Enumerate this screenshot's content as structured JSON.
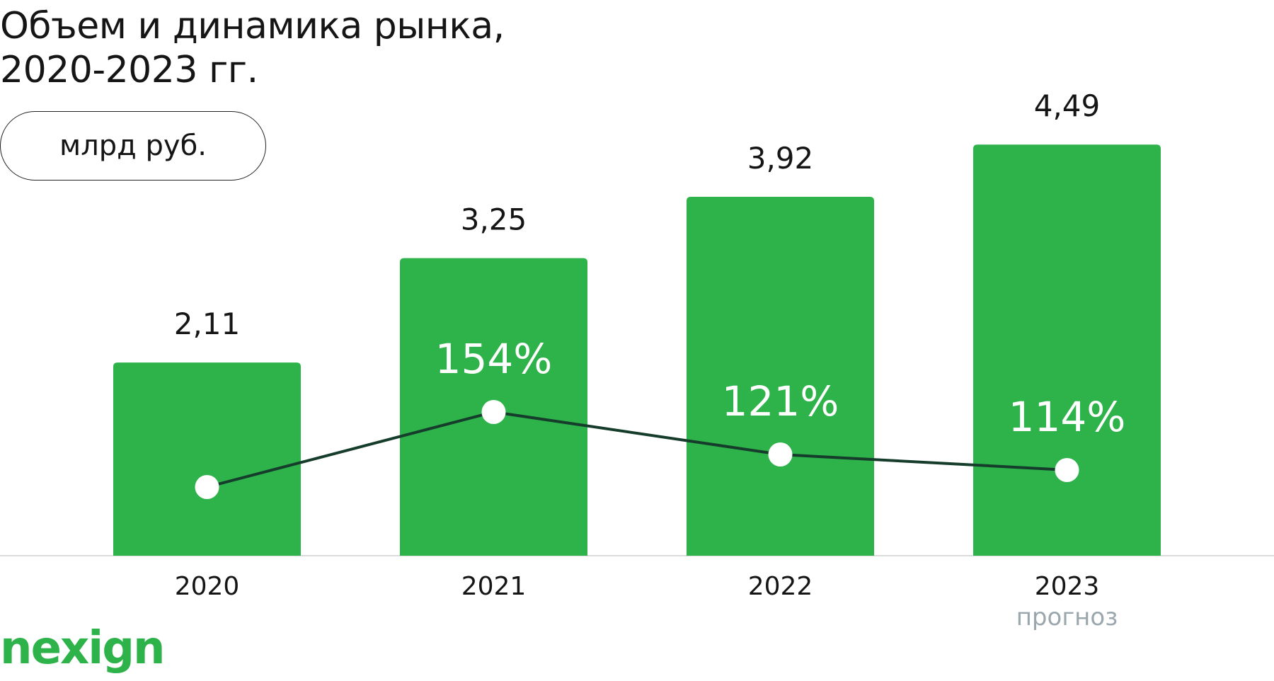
{
  "title_lines": [
    "Объем и динамика рынка,",
    "2020-2023 гг."
  ],
  "unit": "млрд руб.",
  "logo": "nexign",
  "colors": {
    "bar": "#2db34a",
    "line": "#163d2c",
    "marker": "#ffffff",
    "percent_text": "#ffffff",
    "note": "#9aa7ad",
    "baseline": "#cfcfcf"
  },
  "chart_data": {
    "type": "bar",
    "title": "Объем и динамика рынка, 2020-2023 гг.",
    "ylabel": "млрд руб.",
    "categories": [
      "2020",
      "2021",
      "2022",
      "2023"
    ],
    "value_labels": [
      "2,11",
      "3,25",
      "3,92",
      "4,49"
    ],
    "values": [
      2.11,
      3.25,
      3.92,
      4.49
    ],
    "category_note": {
      "index": 3,
      "text": "прогноз"
    },
    "ylim": [
      0,
      4.6
    ],
    "growth": {
      "type": "line",
      "labels": [
        "",
        "154%",
        "121%",
        "114%"
      ],
      "values": [
        null,
        154,
        121,
        114
      ]
    },
    "grid": false,
    "legend": "none"
  }
}
